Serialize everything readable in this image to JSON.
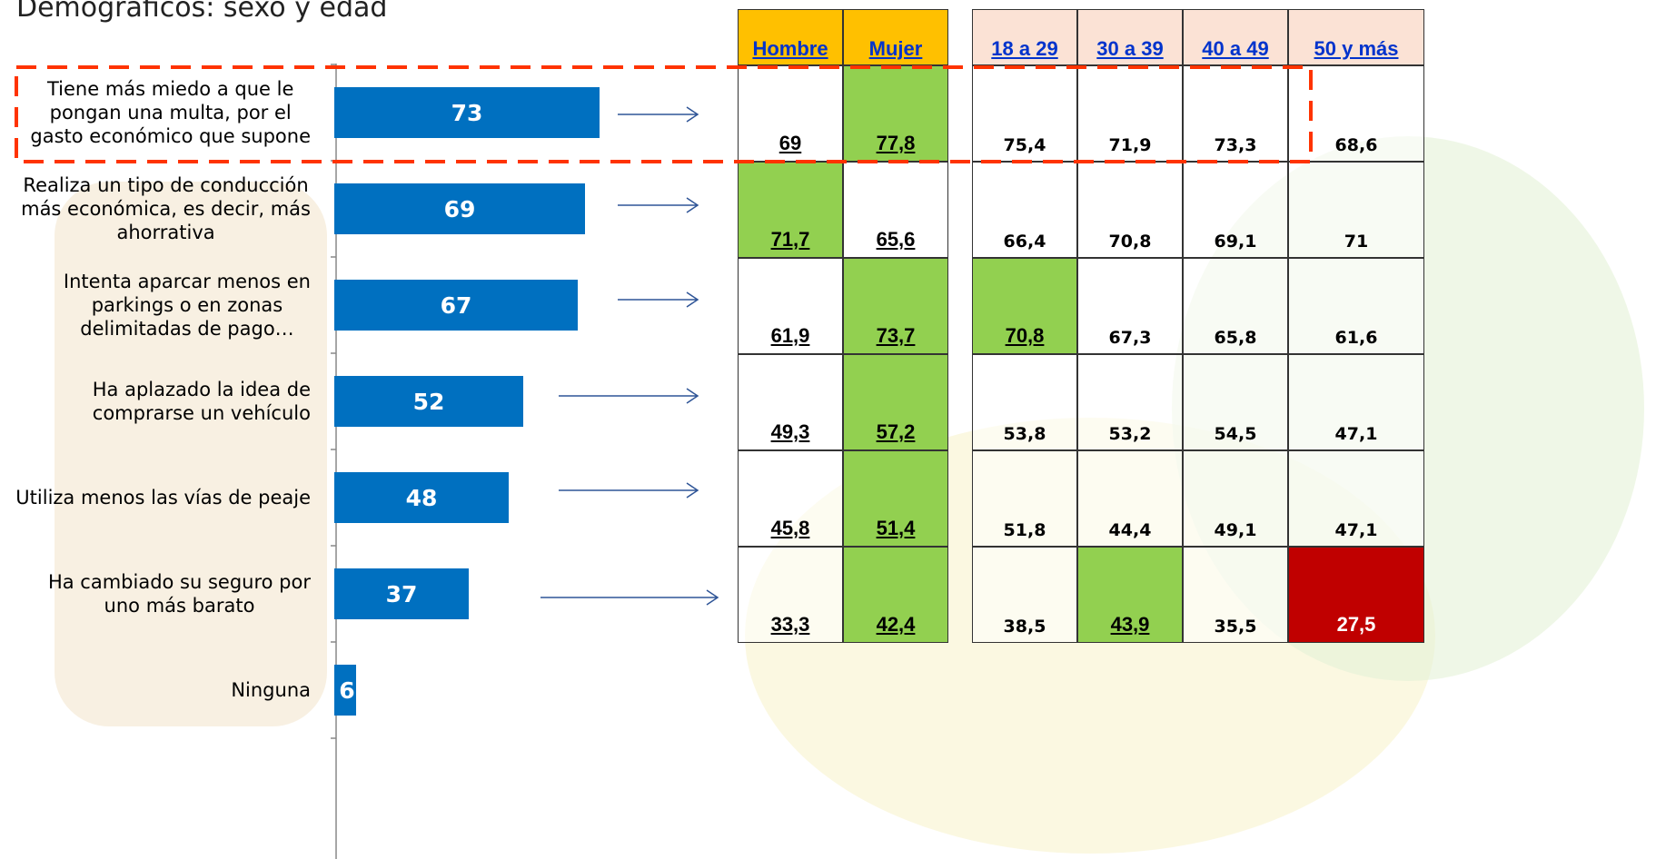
{
  "title": "Demográficos: sexo y edad",
  "chart_data": {
    "type": "bar",
    "orientation": "horizontal",
    "categories": [
      "Tiene más miedo a que le\npongan una multa, por el\ngasto económico que supone",
      "Realiza un tipo de conducción\nmás económica, es decir, más\nahorrativa",
      "Intenta aparcar menos en\nparkings o en zonas\ndelimitadas de pago…",
      "Ha aplazado la idea de\ncomprarse un vehículo",
      "Utiliza menos las vías de peaje",
      "Ha cambiado su seguro por\nuno más barato",
      "Ninguna"
    ],
    "values": [
      73,
      69,
      67,
      52,
      48,
      37,
      6
    ],
    "color": "#0070C0"
  },
  "sex_table": {
    "header": [
      "Hombre",
      "Mujer"
    ],
    "header_color": "#FFC000",
    "rows": [
      [
        "69",
        "77,8"
      ],
      [
        "71,7",
        "65,6"
      ],
      [
        "61,9",
        "73,7"
      ],
      [
        "49,3",
        "57,2"
      ],
      [
        "45,8",
        "51,4"
      ],
      [
        "33,3",
        "42,4"
      ]
    ],
    "cell_colors": [
      [
        null,
        "#92D050"
      ],
      [
        "#92D050",
        null
      ],
      [
        null,
        "#92D050"
      ],
      [
        null,
        "#92D050"
      ],
      [
        null,
        "#92D050"
      ],
      [
        null,
        "#92D050"
      ]
    ]
  },
  "age_table": {
    "header": [
      "18 a 29",
      "30 a 39",
      "40 a 49",
      "50 y más"
    ],
    "header_color": "#FBE2D5",
    "rows": [
      [
        "75,4",
        "71,9",
        "73,3",
        "68,6"
      ],
      [
        "66,4",
        "70,8",
        "69,1",
        "71"
      ],
      [
        "70,8",
        "67,3",
        "65,8",
        "61,6"
      ],
      [
        "53,8",
        "53,2",
        "54,5",
        "47,1"
      ],
      [
        "51,8",
        "44,4",
        "49,1",
        "47,1"
      ],
      [
        "38,5",
        "43,9",
        "35,5",
        "27,5"
      ]
    ],
    "cell_colors": [
      [
        null,
        null,
        null,
        null
      ],
      [
        null,
        null,
        null,
        null
      ],
      [
        "#92D050",
        null,
        null,
        null
      ],
      [
        null,
        null,
        null,
        null
      ],
      [
        null,
        null,
        null,
        null
      ],
      [
        null,
        "#92D050",
        null,
        "#C00000"
      ]
    ]
  }
}
